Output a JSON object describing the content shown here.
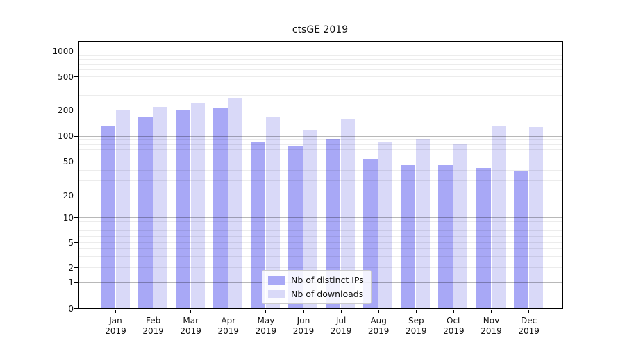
{
  "chart_data": {
    "type": "bar",
    "title": "ctsGE 2019",
    "year": "2019",
    "categories": [
      "Jan",
      "Feb",
      "Mar",
      "Apr",
      "May",
      "Jun",
      "Jul",
      "Aug",
      "Sep",
      "Oct",
      "Nov",
      "Dec"
    ],
    "series": [
      {
        "name": "Nb of distinct IPs",
        "color": "#a8a8f6",
        "values": [
          130,
          165,
          196,
          212,
          86,
          77,
          92,
          54,
          45,
          45,
          42,
          38
        ]
      },
      {
        "name": "Nb of downloads",
        "color": "#d9d9f8",
        "values": [
          197,
          216,
          243,
          277,
          166,
          118,
          157,
          86,
          91,
          80,
          132,
          126
        ]
      }
    ],
    "yaxis": {
      "scale": "log-like-with-zero",
      "tick_labels": [
        "0",
        "1",
        "2",
        "5",
        "10",
        "20",
        "50",
        "100",
        "200",
        "500",
        "1000"
      ],
      "tick_values": [
        0,
        1,
        2,
        5,
        10,
        20,
        50,
        100,
        200,
        500,
        1000
      ],
      "ylim": [
        0,
        1280
      ]
    },
    "xlabel": "",
    "ylabel": "",
    "legend": {
      "position": "lower center",
      "entries": [
        "Nb of distinct IPs",
        "Nb of downloads"
      ]
    },
    "grid": "horizontal major and minor"
  },
  "colors": {
    "bar_dark": "#a8a8f6",
    "bar_light": "#d9d9f8",
    "grid_major": "rgba(0,0,0,0.28)",
    "grid_minor": "rgba(0,0,0,0.075)",
    "axis": "#000000",
    "background": "#ffffff"
  }
}
